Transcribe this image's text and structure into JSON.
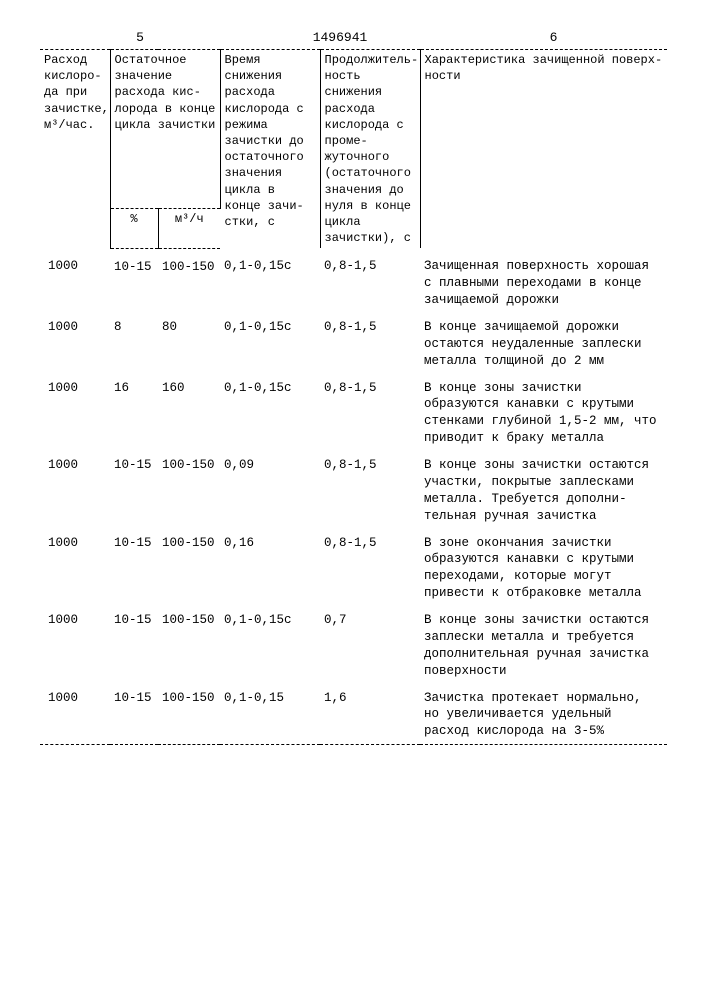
{
  "page_left": "5",
  "doc_number": "1496941",
  "page_right": "6",
  "headers": {
    "h1": "Расход кислоро­да при зачистке, м³/час.",
    "h2": "Остаточное значе­ние расхода кис­лорода в конце цикла зачистки",
    "h2a": "%",
    "h2b": "м³/ч",
    "h3": "Время снижения расхода кисло­рода с режима зачистки до остаточного значения цикла в конце зачи­стки, с",
    "h4": "Продолжитель­ность снижения расхода кисло­рода с проме­жуточного (ос­таточного зна­чения до нуля в конце цикла зачистки), с",
    "h5": "Характеристика зачищенной поверх­ности"
  },
  "rows": [
    {
      "c1": "1000",
      "c2": "10-15",
      "c3": "100-150",
      "c4": "0,1-0,15с",
      "c5": "0,8-1,5",
      "c6": "Зачищенная поверх­ность хорошая с плавными перехо­дами в конце зачи­щаемой дорожки"
    },
    {
      "c1": "1000",
      "c2": "8",
      "c3": "80",
      "c4": "0,1-0,15с",
      "c5": "0,8-1,5",
      "c6": "В конце зачищаемой дорожки остаются неудаленные заплес­ки металла толщиной до 2 мм"
    },
    {
      "c1": "1000",
      "c2": "16",
      "c3": "160",
      "c4": "0,1-0,15с",
      "c5": "0,8-1,5",
      "c6": "В конце зоны зачи­стки образуются ка­навки с крутыми стенками глубиной 1,5-2 мм, что при­водит к браку ме­талла"
    },
    {
      "c1": "1000",
      "c2": "10-15",
      "c3": "100-150",
      "c4": "0,09",
      "c5": "0,8-1,5",
      "c6": "В конце зоны зачис­тки остаются учас­тки, покрытые зап­лесками металла. Требуется дополни­тельная ручная за­чистка"
    },
    {
      "c1": "1000",
      "c2": "10-15",
      "c3": "100-150",
      "c4": "0,16",
      "c5": "0,8-1,5",
      "c6": "В зоне окончания зачистки образуются канавки с крутыми переходами, которые могут привести к отбраковке металла"
    },
    {
      "c1": "1000",
      "c2": "10-15",
      "c3": "100-150",
      "c4": "0,1-0,15с",
      "c5": "0,7",
      "c6": "В конце зоны зачис­тки остаются зап­лески металла и требуется дополни­тельная ручная за­чистка поверхности"
    },
    {
      "c1": "1000",
      "c2": "10-15",
      "c3": "100-150",
      "c4": "0,1-0,15",
      "c5": "1,6",
      "c6": "Зачистка протекает нормально, но уве­личивается удельный расход кислорода на 3-5%"
    }
  ]
}
